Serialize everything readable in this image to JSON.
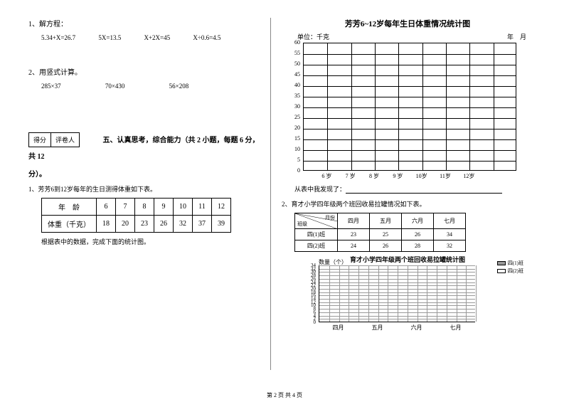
{
  "left": {
    "q1_title": "1、解方程：",
    "eq": [
      "5.34+X=26.7",
      "5X=13.5",
      "X+2X=45",
      "X÷0.6=4.5"
    ],
    "q2_title": "2、用竖式计算。",
    "calc": [
      "285×37",
      "70×430",
      "56×208"
    ],
    "score_labels": [
      "得分",
      "评卷人"
    ],
    "section5": "五、认真思考，综合能力（共 2 小题，每题 6 分，共 12",
    "section5_cont": "分）。",
    "subq1": "1、芳芳6到12岁每年的生日测得体重如下表。",
    "table1": {
      "headers": [
        "年　龄",
        "6",
        "7",
        "8",
        "9",
        "10",
        "11",
        "12"
      ],
      "row2": [
        "体重（千克）",
        "18",
        "20",
        "23",
        "26",
        "32",
        "37",
        "39"
      ]
    },
    "note1": "根据表中的数据，完成下面的统计图。"
  },
  "right": {
    "chart1": {
      "title": "芳芳6~12岁每年生日体重情况统计图",
      "unit": "单位：千克",
      "date": "年　月",
      "ylim": [
        0,
        60
      ],
      "ystep": 5,
      "yticks": [
        0,
        5,
        10,
        15,
        20,
        25,
        30,
        35,
        40,
        45,
        50,
        55,
        60
      ],
      "xlabels": [
        "6 岁",
        "7 岁",
        "8 岁",
        "9 岁",
        "10岁",
        "11岁",
        "12岁"
      ],
      "grid_cols": 9,
      "grid_color": "#000000",
      "bg": "#ffffff"
    },
    "note_prefix": "从表中我发现了：",
    "q2": "2、育才小学四年级两个班回收易拉罐情况如下表。",
    "table2": {
      "diag_top": "月份",
      "diag_mid": "数量（个）",
      "diag_bot": "班级",
      "months": [
        "四月",
        "五月",
        "六月",
        "七月"
      ],
      "rows": [
        {
          "label": "四(1)班",
          "vals": [
            "23",
            "25",
            "26",
            "34"
          ]
        },
        {
          "label": "四(2)班",
          "vals": [
            "24",
            "26",
            "28",
            "32"
          ]
        }
      ]
    },
    "chart2": {
      "title": "育才小学四年级两个班回收易拉罐统计图",
      "ylabel": "数量（个）",
      "yticks": [
        0,
        2,
        4,
        6,
        8,
        10,
        12,
        14,
        16,
        18,
        20,
        22,
        24,
        26,
        28,
        30,
        32,
        34
      ],
      "xlabels": [
        "四月",
        "五月",
        "六月",
        "七月"
      ],
      "legend": [
        "四(1)班",
        "四(2)班"
      ],
      "bar_colors": [
        "#999999",
        "#ffffff"
      ]
    }
  },
  "footer": "第 2 页 共 4 页"
}
